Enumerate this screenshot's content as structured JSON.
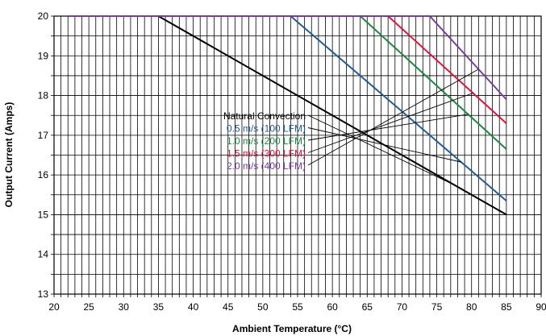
{
  "chart_data": {
    "type": "line",
    "xlabel": "Ambient Temperature (°C)",
    "ylabel": "Output Current (Amps)",
    "xlim": [
      20,
      90
    ],
    "ylim": [
      13,
      20
    ],
    "xticks": [
      20,
      25,
      30,
      35,
      40,
      45,
      50,
      55,
      60,
      65,
      70,
      75,
      80,
      85,
      90
    ],
    "yticks": [
      13,
      14,
      15,
      16,
      17,
      18,
      19,
      20
    ],
    "grid": true,
    "legend_placement": "center",
    "series": [
      {
        "name": "Natural Convection",
        "color": "#000000",
        "x": [
          22,
          35,
          85
        ],
        "y": [
          20,
          20,
          15.0
        ]
      },
      {
        "name": "0.5 m/s (100 LFM)",
        "color": "#1f5c99",
        "x": [
          22,
          54,
          85
        ],
        "y": [
          20,
          20,
          15.35
        ]
      },
      {
        "name": "1.0 m/s (200 LFM)",
        "color": "#1b8a3e",
        "x": [
          22,
          64,
          85
        ],
        "y": [
          20,
          20,
          16.65
        ]
      },
      {
        "name": "1.5 m/s (300 LFM)",
        "color": "#e0143c",
        "x": [
          22,
          68,
          85
        ],
        "y": [
          20,
          20,
          17.3
        ]
      },
      {
        "name": "2.0 m/s (400 LFM)",
        "color": "#7b3aa0",
        "x": [
          22,
          74,
          85
        ],
        "y": [
          20,
          20,
          17.9
        ]
      }
    ]
  }
}
